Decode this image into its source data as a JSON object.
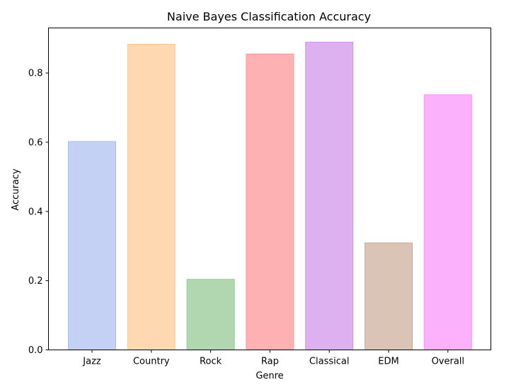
{
  "chart_data": {
    "type": "bar",
    "title": "Naive Bayes Classification Accuracy",
    "xlabel": "Genre",
    "ylabel": "Accuracy",
    "categories": [
      "Jazz",
      "Country",
      "Rock",
      "Rap",
      "Classical",
      "EDM",
      "Overall"
    ],
    "values": [
      0.602,
      0.883,
      0.204,
      0.855,
      0.889,
      0.309,
      0.737
    ],
    "ylim": [
      0,
      0.93
    ],
    "yticks": [
      0.0,
      0.2,
      0.4,
      0.6,
      0.8
    ],
    "ytick_labels": [
      "0.0",
      "0.2",
      "0.4",
      "0.6",
      "0.8"
    ],
    "grid": false,
    "colors": [
      "#c4d1f4",
      "#fed8b1",
      "#b1d7b1",
      "#feb1b2",
      "#ddb0f0",
      "#d9c4b5",
      "#fcb1fc"
    ],
    "edge_colors": [
      "#a9bdf0",
      "#fdc794",
      "#99cc99",
      "#fd9898",
      "#cc90e8",
      "#c9ad98",
      "#f990f9"
    ]
  }
}
